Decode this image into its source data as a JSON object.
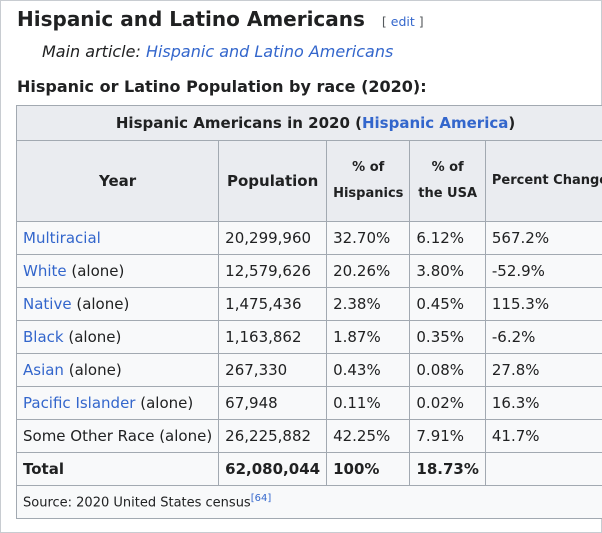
{
  "section": {
    "title": "Hispanic and Latino Americans",
    "edit_open": "[",
    "edit_label": "edit",
    "edit_close": "]"
  },
  "hatnote": {
    "prefix": "Main article: ",
    "link": "Hispanic and Latino Americans"
  },
  "subheading": "Hispanic or Latino Population by race (2020):",
  "table": {
    "caption_prefix": "Hispanic Americans in 2020 (",
    "caption_link": "Hispanic America",
    "caption_suffix": ")",
    "headers": {
      "year": "Year",
      "population": "Population",
      "pct_hispanics_line1": "% of",
      "pct_hispanics_line2": "Hispanics",
      "pct_usa_line1": "% of",
      "pct_usa_line2": "the USA",
      "percent_change": "Percent Change"
    },
    "rows": [
      {
        "race": "Multiracial",
        "suffix": "",
        "population": "20,299,960",
        "pct_hispanics": "32.70%",
        "pct_usa": "6.12%",
        "change": "567.2%"
      },
      {
        "race": "White",
        "suffix": " (alone)",
        "population": "12,579,626",
        "pct_hispanics": "20.26%",
        "pct_usa": "3.80%",
        "change": "-52.9%"
      },
      {
        "race": "Native",
        "suffix": " (alone)",
        "population": "1,475,436",
        "pct_hispanics": "2.38%",
        "pct_usa": "0.45%",
        "change": "115.3%"
      },
      {
        "race": "Black",
        "suffix": " (alone)",
        "population": "1,163,862",
        "pct_hispanics": "1.87%",
        "pct_usa": "0.35%",
        "change": "-6.2%"
      },
      {
        "race": "Asian",
        "suffix": " (alone)",
        "population": "267,330",
        "pct_hispanics": "0.43%",
        "pct_usa": "0.08%",
        "change": "27.8%"
      },
      {
        "race": "Pacific Islander",
        "suffix": " (alone)",
        "population": "67,948",
        "pct_hispanics": "0.11%",
        "pct_usa": "0.02%",
        "change": "16.3%"
      },
      {
        "race": "Some Other Race (alone)",
        "suffix": "",
        "population": "26,225,882",
        "pct_hispanics": "42.25%",
        "pct_usa": "7.91%",
        "change": "41.7%"
      }
    ],
    "total": {
      "label": "Total",
      "population": "62,080,044",
      "pct_hispanics": "100%",
      "pct_usa": "18.73%",
      "change": ""
    },
    "source": {
      "text": "Source: 2020 United States census",
      "ref": "[64]"
    }
  }
}
